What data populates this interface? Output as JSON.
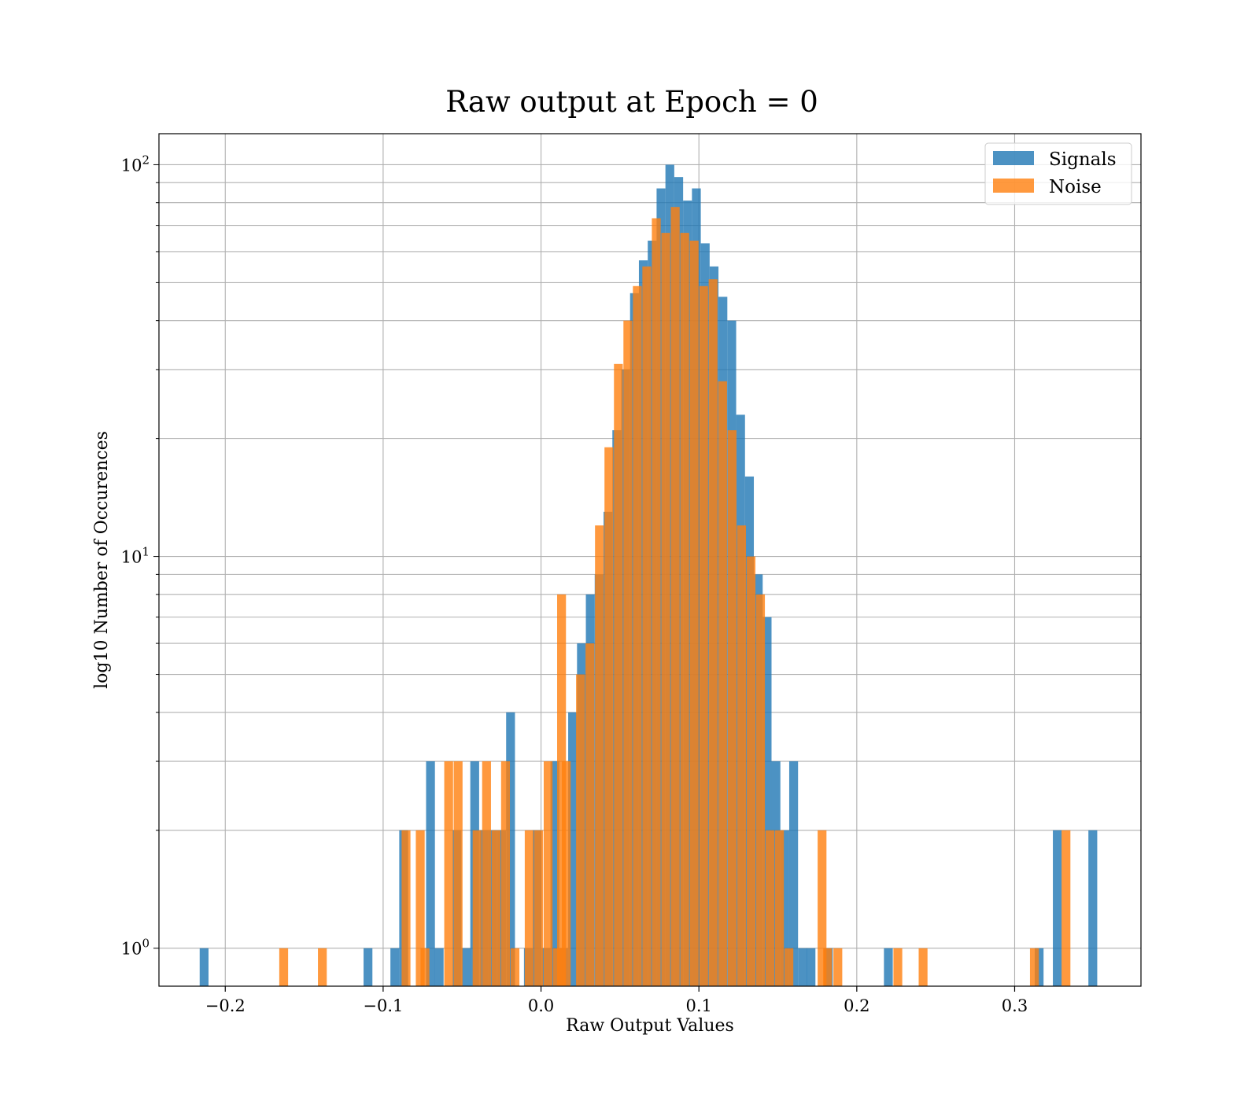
{
  "chart_data": {
    "type": "bar",
    "title": "Raw output at Epoch = 0",
    "xlabel": "Raw Output Values",
    "ylabel": "log10 Number of Occurences",
    "xlim": [
      -0.242,
      0.38
    ],
    "ylim": [
      0.8,
      120
    ],
    "yscale": "log",
    "grid": true,
    "legend_position": "top-right",
    "xticks": [
      -0.2,
      -0.1,
      0.0,
      0.1,
      0.2,
      0.3
    ],
    "xtick_labels": [
      "−0.2",
      "−0.1",
      "0.0",
      "0.1",
      "0.2",
      "0.3"
    ],
    "yticks": [
      1,
      10,
      100
    ],
    "ytick_labels": [
      {
        "base": "10",
        "exp": "0"
      },
      {
        "base": "10",
        "exp": "1"
      },
      {
        "base": "10",
        "exp": "2"
      }
    ],
    "bin_width": 0.0056,
    "series": [
      {
        "name": "Signals",
        "color": "#1f77b4",
        "bins": [
          {
            "x": -0.2134,
            "y": 1
          },
          {
            "x": -0.1096,
            "y": 1
          },
          {
            "x": -0.0926,
            "y": 1
          },
          {
            "x": -0.087,
            "y": 2
          },
          {
            "x": -0.07,
            "y": 3
          },
          {
            "x": -0.0645,
            "y": 1
          },
          {
            "x": -0.0532,
            "y": 2
          },
          {
            "x": -0.0475,
            "y": 1
          },
          {
            "x": -0.042,
            "y": 3
          },
          {
            "x": -0.0362,
            "y": 2
          },
          {
            "x": -0.0306,
            "y": 2
          },
          {
            "x": -0.025,
            "y": 2
          },
          {
            "x": -0.0193,
            "y": 4
          },
          {
            "x": -0.008,
            "y": 1
          },
          {
            "x": -0.0025,
            "y": 2
          },
          {
            "x": 0.0032,
            "y": 1
          },
          {
            "x": 0.0088,
            "y": 3
          },
          {
            "x": 0.0144,
            "y": 1
          },
          {
            "x": 0.02,
            "y": 4
          },
          {
            "x": 0.0256,
            "y": 6
          },
          {
            "x": 0.0312,
            "y": 8
          },
          {
            "x": 0.0368,
            "y": 9
          },
          {
            "x": 0.0424,
            "y": 13
          },
          {
            "x": 0.048,
            "y": 21
          },
          {
            "x": 0.0536,
            "y": 30
          },
          {
            "x": 0.0592,
            "y": 47
          },
          {
            "x": 0.0648,
            "y": 57
          },
          {
            "x": 0.0704,
            "y": 64
          },
          {
            "x": 0.076,
            "y": 87
          },
          {
            "x": 0.0816,
            "y": 100
          },
          {
            "x": 0.0872,
            "y": 93
          },
          {
            "x": 0.0928,
            "y": 81
          },
          {
            "x": 0.0984,
            "y": 87
          },
          {
            "x": 0.104,
            "y": 63
          },
          {
            "x": 0.1096,
            "y": 55
          },
          {
            "x": 0.1152,
            "y": 46
          },
          {
            "x": 0.1208,
            "y": 40
          },
          {
            "x": 0.1264,
            "y": 23
          },
          {
            "x": 0.132,
            "y": 16
          },
          {
            "x": 0.1376,
            "y": 9
          },
          {
            "x": 0.1432,
            "y": 7
          },
          {
            "x": 0.1488,
            "y": 3
          },
          {
            "x": 0.1544,
            "y": 2
          },
          {
            "x": 0.16,
            "y": 3
          },
          {
            "x": 0.1656,
            "y": 1
          },
          {
            "x": 0.171,
            "y": 1
          },
          {
            "x": 0.182,
            "y": 1
          },
          {
            "x": 0.22,
            "y": 1
          },
          {
            "x": 0.3155,
            "y": 1
          },
          {
            "x": 0.327,
            "y": 2
          },
          {
            "x": 0.3495,
            "y": 2
          }
        ]
      },
      {
        "name": "Noise",
        "color": "#ff7f0e",
        "bins": [
          {
            "x": -0.163,
            "y": 1
          },
          {
            "x": -0.1385,
            "y": 1
          },
          {
            "x": -0.0855,
            "y": 2
          },
          {
            "x": -0.0765,
            "y": 2
          },
          {
            "x": -0.0735,
            "y": 1
          },
          {
            "x": -0.0585,
            "y": 3
          },
          {
            "x": -0.0525,
            "y": 3
          },
          {
            "x": -0.0405,
            "y": 2
          },
          {
            "x": -0.0345,
            "y": 3
          },
          {
            "x": -0.0285,
            "y": 2
          },
          {
            "x": -0.0225,
            "y": 3
          },
          {
            "x": -0.0165,
            "y": 1
          },
          {
            "x": -0.0075,
            "y": 2
          },
          {
            "x": -0.0015,
            "y": 2
          },
          {
            "x": 0.0045,
            "y": 3
          },
          {
            "x": 0.0105,
            "y": 1
          },
          {
            "x": 0.013,
            "y": 8
          },
          {
            "x": 0.016,
            "y": 3
          },
          {
            "x": 0.025,
            "y": 5
          },
          {
            "x": 0.031,
            "y": 6
          },
          {
            "x": 0.037,
            "y": 12
          },
          {
            "x": 0.043,
            "y": 19
          },
          {
            "x": 0.049,
            "y": 31
          },
          {
            "x": 0.055,
            "y": 40
          },
          {
            "x": 0.061,
            "y": 49
          },
          {
            "x": 0.067,
            "y": 55
          },
          {
            "x": 0.073,
            "y": 73
          },
          {
            "x": 0.079,
            "y": 67
          },
          {
            "x": 0.085,
            "y": 78
          },
          {
            "x": 0.091,
            "y": 67
          },
          {
            "x": 0.097,
            "y": 64
          },
          {
            "x": 0.103,
            "y": 49
          },
          {
            "x": 0.109,
            "y": 51
          },
          {
            "x": 0.115,
            "y": 28
          },
          {
            "x": 0.121,
            "y": 21
          },
          {
            "x": 0.127,
            "y": 12
          },
          {
            "x": 0.133,
            "y": 10
          },
          {
            "x": 0.139,
            "y": 8
          },
          {
            "x": 0.145,
            "y": 2
          },
          {
            "x": 0.151,
            "y": 2
          },
          {
            "x": 0.157,
            "y": 1
          },
          {
            "x": 0.178,
            "y": 2
          },
          {
            "x": 0.1815,
            "y": 1
          },
          {
            "x": 0.188,
            "y": 1
          },
          {
            "x": 0.226,
            "y": 1
          },
          {
            "x": 0.242,
            "y": 1
          },
          {
            "x": 0.3125,
            "y": 1
          },
          {
            "x": 0.3325,
            "y": 2
          }
        ]
      }
    ]
  }
}
